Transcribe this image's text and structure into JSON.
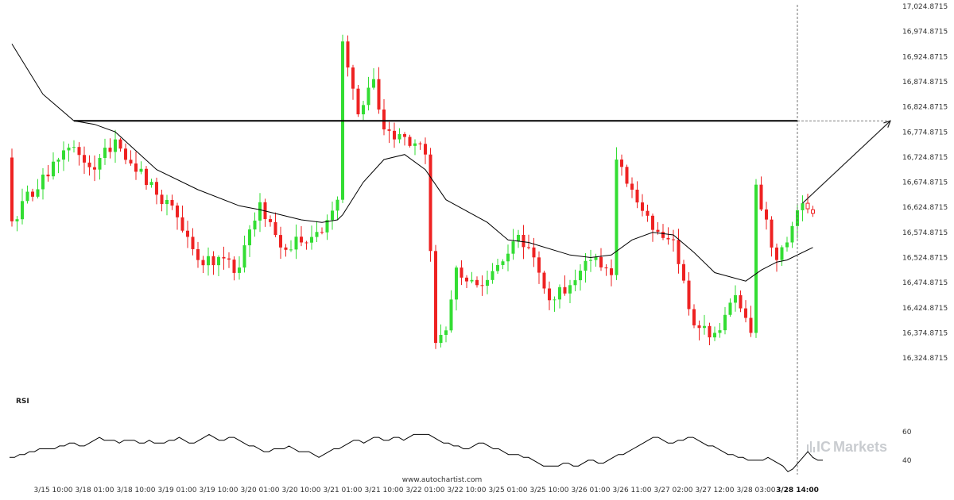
{
  "colors": {
    "bull": "#33dd33",
    "bear": "#ee2222",
    "ma": "#000000",
    "resistance": "#000000",
    "arrow": "#222222",
    "rsi": "#000000",
    "watermark": "#c9ccd0"
  },
  "site_label": "www.autochartist.com",
  "watermark": {
    "prefix": "IC",
    "brand": "Markets",
    "mark_icon": "icmarkets-bars-icon"
  },
  "chart_data": [
    {
      "type": "candlestick",
      "title": "",
      "xlabel": "",
      "ylabel": "",
      "y_axis_position": "right",
      "grid": false,
      "ylim": [
        16299.8715,
        17024.8715
      ],
      "y_ticks": [
        "17,024.8715",
        "16,974.8715",
        "16,924.8715",
        "16,874.8715",
        "16,824.8715",
        "16,774.8715",
        "16,724.8715",
        "16,674.8715",
        "16,624.8715",
        "16,574.8715",
        "16,524.8715",
        "16,474.8715",
        "16,424.8715",
        "16,374.8715",
        "16,324.8715"
      ],
      "y_tick_values": [
        17024.8715,
        16974.8715,
        16924.8715,
        16874.8715,
        16824.8715,
        16774.8715,
        16724.8715,
        16674.8715,
        16624.8715,
        16574.8715,
        16524.8715,
        16474.8715,
        16424.8715,
        16374.8715,
        16324.8715
      ],
      "x_ticks": [
        "3/15 10:00",
        "3/18 01:00",
        "3/18 10:00",
        "3/19 01:00",
        "3/19 10:00",
        "3/20 01:00",
        "3/20 10:00",
        "3/21 01:00",
        "3/21 10:00",
        "3/22 01:00",
        "3/22 10:00",
        "3/25 01:00",
        "3/25 10:00",
        "3/26 01:00",
        "3/26 11:00",
        "3/27 02:00",
        "3/27 12:00",
        "3/28 03:00",
        "3/28 14:00"
      ],
      "x_tick_index": [
        8,
        16,
        24,
        32,
        40,
        48,
        56,
        64,
        72,
        80,
        88,
        96,
        104,
        112,
        120,
        128,
        136,
        144,
        152
      ],
      "highlighted_tick": "3/28 14:00",
      "resistance_level": 16797,
      "resistance_span": [
        12,
        152
      ],
      "projection": {
        "from_index": 153,
        "from_value": 16633,
        "to_index": 170,
        "to_value": 16797
      },
      "forecast_candles": [
        {
          "i": 154,
          "o": 16633,
          "h": 16652,
          "l": 16613,
          "c": 16622
        },
        {
          "i": 155,
          "o": 16620,
          "h": 16628,
          "l": 16606,
          "c": 16613
        }
      ],
      "ohlc_seed": {
        "count": 154,
        "start": 16724,
        "key_closes": [
          [
            0,
            16597
          ],
          [
            6,
            16690
          ],
          [
            12,
            16745
          ],
          [
            16,
            16700
          ],
          [
            20,
            16760
          ],
          [
            28,
            16650
          ],
          [
            32,
            16605
          ],
          [
            36,
            16520
          ],
          [
            44,
            16505
          ],
          [
            48,
            16635
          ],
          [
            52,
            16545
          ],
          [
            56,
            16555
          ],
          [
            60,
            16575
          ],
          [
            63,
            16640
          ],
          [
            64,
            16955
          ],
          [
            67,
            16810
          ],
          [
            70,
            16880
          ],
          [
            72,
            16780
          ],
          [
            76,
            16765
          ],
          [
            80,
            16730
          ],
          [
            82,
            16355
          ],
          [
            84,
            16380
          ],
          [
            86,
            16505
          ],
          [
            90,
            16470
          ],
          [
            94,
            16510
          ],
          [
            98,
            16570
          ],
          [
            100,
            16545
          ],
          [
            104,
            16440
          ],
          [
            108,
            16470
          ],
          [
            112,
            16520
          ],
          [
            116,
            16490
          ],
          [
            117,
            16720
          ],
          [
            120,
            16660
          ],
          [
            124,
            16580
          ],
          [
            128,
            16560
          ],
          [
            132,
            16390
          ],
          [
            136,
            16375
          ],
          [
            140,
            16450
          ],
          [
            143,
            16375
          ],
          [
            144,
            16670
          ],
          [
            148,
            16520
          ],
          [
            150,
            16555
          ],
          [
            153,
            16633
          ]
        ]
      },
      "moving_average": [
        [
          0,
          16950
        ],
        [
          6,
          16850
        ],
        [
          12,
          16797
        ],
        [
          16,
          16790
        ],
        [
          20,
          16775
        ],
        [
          28,
          16700
        ],
        [
          36,
          16660
        ],
        [
          44,
          16628
        ],
        [
          48,
          16620
        ],
        [
          56,
          16600
        ],
        [
          60,
          16595
        ],
        [
          63,
          16600
        ],
        [
          64,
          16610
        ],
        [
          68,
          16675
        ],
        [
          72,
          16720
        ],
        [
          76,
          16730
        ],
        [
          80,
          16700
        ],
        [
          84,
          16640
        ],
        [
          92,
          16595
        ],
        [
          96,
          16560
        ],
        [
          100,
          16555
        ],
        [
          108,
          16530
        ],
        [
          112,
          16525
        ],
        [
          116,
          16530
        ],
        [
          120,
          16560
        ],
        [
          124,
          16575
        ],
        [
          128,
          16570
        ],
        [
          132,
          16535
        ],
        [
          136,
          16495
        ],
        [
          142,
          16478
        ],
        [
          145,
          16500
        ],
        [
          148,
          16516
        ],
        [
          150,
          16520
        ],
        [
          155,
          16545
        ]
      ]
    },
    {
      "type": "line",
      "title": "RSI",
      "xlabel": "",
      "ylabel": "",
      "ylim": [
        30,
        66
      ],
      "y_ticks": [
        "60",
        "40"
      ],
      "y_tick_values": [
        60,
        40
      ],
      "series": [
        {
          "values": [
            42,
            42,
            44,
            44,
            46,
            46,
            48,
            48,
            48,
            48,
            50,
            50,
            52,
            52,
            50,
            50,
            52,
            54,
            56,
            54,
            54,
            54,
            52,
            54,
            54,
            54,
            52,
            52,
            54,
            52,
            52,
            52,
            54,
            54,
            56,
            54,
            52,
            52,
            54,
            56,
            58,
            56,
            54,
            54,
            56,
            56,
            54,
            52,
            50,
            50,
            48,
            46,
            46,
            48,
            48,
            48,
            50,
            48,
            46,
            46,
            46,
            44,
            42,
            44,
            46,
            48,
            48,
            50,
            52,
            54,
            54,
            52,
            54,
            56,
            56,
            54,
            54,
            56,
            56,
            54,
            56,
            58,
            58,
            58,
            58,
            56,
            54,
            52,
            52,
            50,
            50,
            48,
            48,
            50,
            52,
            52,
            50,
            48,
            48,
            46,
            44,
            44,
            44,
            42,
            42,
            40,
            38,
            36,
            36,
            36,
            36,
            38,
            38,
            36,
            36,
            38,
            40,
            40,
            38,
            38,
            40,
            42,
            44,
            44,
            46,
            48,
            50,
            52,
            54,
            56,
            56,
            54,
            52,
            52,
            54,
            54,
            56,
            56,
            54,
            52,
            50,
            50,
            48,
            46,
            44,
            44,
            42,
            42,
            40,
            40,
            40,
            40,
            42,
            40,
            38,
            36,
            32,
            34,
            38,
            42,
            46,
            42,
            40,
            40
          ]
        }
      ]
    }
  ]
}
